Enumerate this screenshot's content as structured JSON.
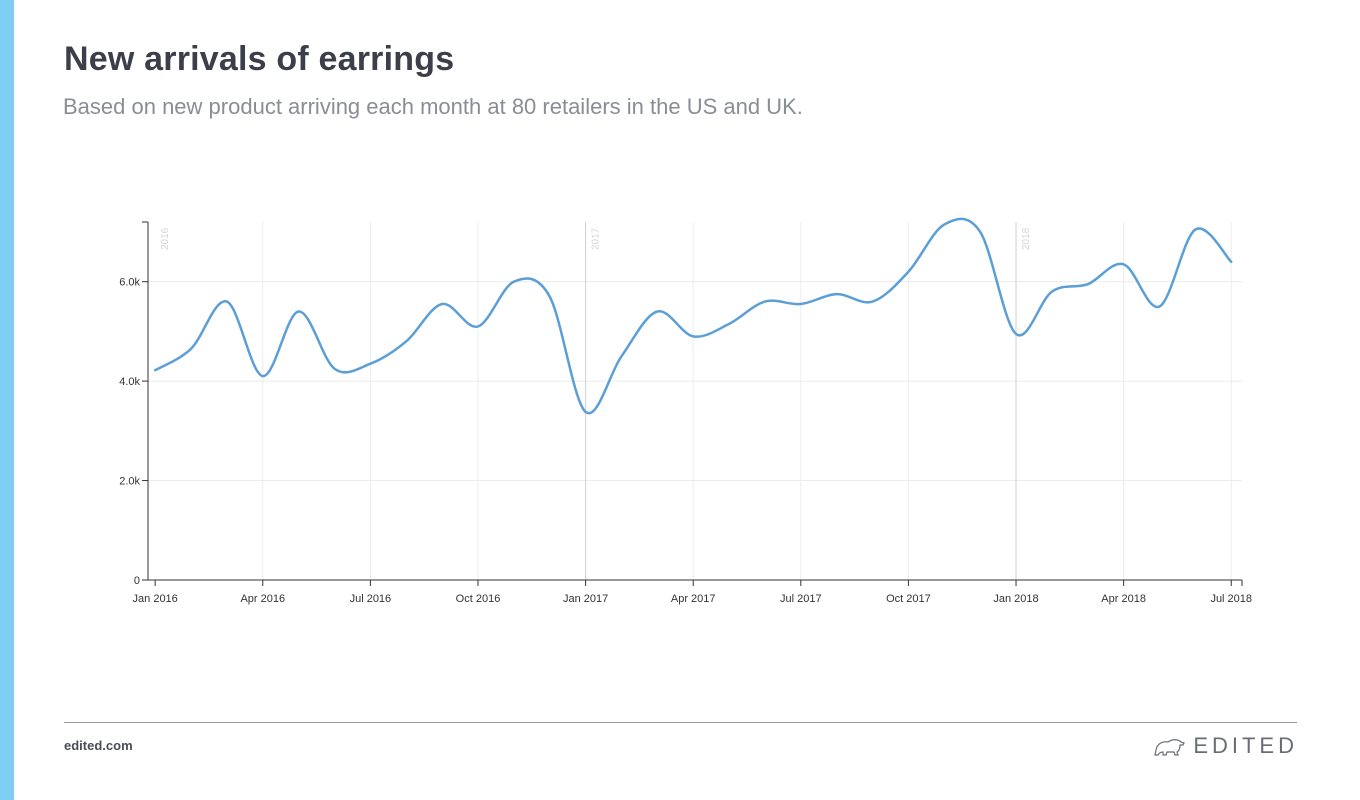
{
  "header": {
    "title": "New arrivals of earrings",
    "subtitle": "Based on new product arriving each month at 80 retailers in the US and UK."
  },
  "footer": {
    "site": "edited.com",
    "brand": "EDITED",
    "brand_icon": "polar-bear-icon"
  },
  "colors": {
    "accent": "#7ecdf3",
    "line": "#5b9fd6",
    "text": "#3c3f4a"
  },
  "chart_data": {
    "type": "line",
    "title": "New arrivals of earrings",
    "x": [
      "2016-01",
      "2016-02",
      "2016-03",
      "2016-04",
      "2016-05",
      "2016-06",
      "2016-07",
      "2016-08",
      "2016-09",
      "2016-10",
      "2016-11",
      "2016-12",
      "2017-01",
      "2017-02",
      "2017-03",
      "2017-04",
      "2017-05",
      "2017-06",
      "2017-07",
      "2017-08",
      "2017-09",
      "2017-10",
      "2017-11",
      "2017-12",
      "2018-01",
      "2018-02",
      "2018-03",
      "2018-04",
      "2018-05",
      "2018-06",
      "2018-07"
    ],
    "series": [
      {
        "values": [
          4220,
          4650,
          5600,
          4100,
          5400,
          4250,
          4350,
          4800,
          5550,
          5100,
          6000,
          5700,
          3380,
          4500,
          5400,
          4900,
          5150,
          5600,
          5550,
          5750,
          5600,
          6200,
          7150,
          7000,
          4950,
          5800,
          5950,
          6350,
          5500,
          7050,
          6400
        ]
      }
    ],
    "xticks": [
      "Jan 2016",
      "Apr 2016",
      "Jul 2016",
      "Oct 2016",
      "Jan 2017",
      "Apr 2017",
      "Jul 2017",
      "Oct 2017",
      "Jan 2018",
      "Apr 2018",
      "Jul 2018"
    ],
    "yticks": [
      "0",
      "2.0k",
      "4.0k",
      "6.0k"
    ],
    "year_markers": [
      "2016",
      "2017",
      "2018"
    ],
    "ylim": [
      0,
      7200
    ],
    "grid": true,
    "legend": "none"
  }
}
